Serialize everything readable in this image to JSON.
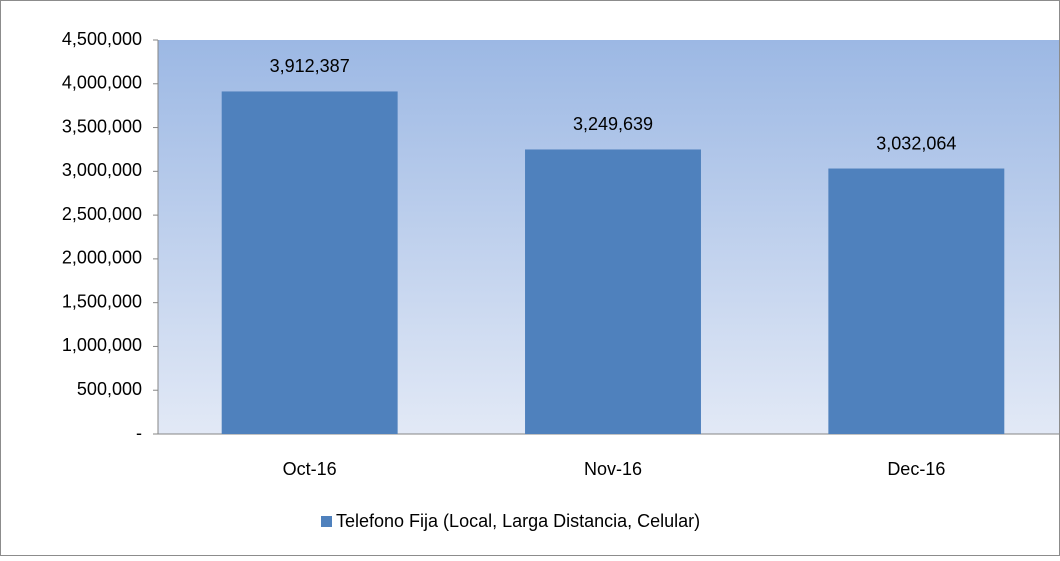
{
  "chart_data": {
    "type": "bar",
    "categories": [
      "Oct-16",
      "Nov-16",
      "Dec-16"
    ],
    "series": [
      {
        "name": "Telefono Fija (Local, Larga Distancia, Celular)",
        "color": "#4f81bd",
        "values": [
          3912387,
          3249639,
          3032064
        ],
        "value_labels": [
          "3,912,387",
          "3,249,639",
          "3,032,064"
        ]
      }
    ],
    "ylim": [
      0,
      4500000
    ],
    "yticks": [
      {
        "value": 0,
        "label": "-"
      },
      {
        "value": 500000,
        "label": "500,000"
      },
      {
        "value": 1000000,
        "label": "1,000,000"
      },
      {
        "value": 1500000,
        "label": "1,500,000"
      },
      {
        "value": 2000000,
        "label": "2,000,000"
      },
      {
        "value": 2500000,
        "label": "2,500,000"
      },
      {
        "value": 3000000,
        "label": "3,000,000"
      },
      {
        "value": 3500000,
        "label": "3,500,000"
      },
      {
        "value": 4000000,
        "label": "4,000,000"
      },
      {
        "value": 4500000,
        "label": "4,500,000"
      }
    ],
    "legend": "bottom"
  }
}
